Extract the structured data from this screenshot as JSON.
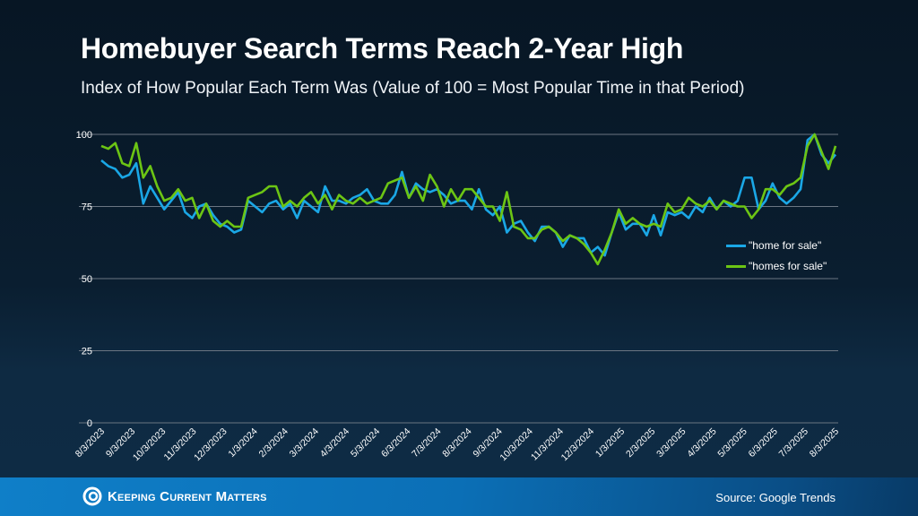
{
  "title": "Homebuyer Search Terms Reach 2-Year High",
  "subtitle": "Index of How Popular Each Term Was (Value of 100 = Most Popular Time in that Period)",
  "footer": {
    "brand": "Keeping Current Matters",
    "source": "Source: Google Trends",
    "logo_icon": "kcm-swirl-logo"
  },
  "colors": {
    "home for sale": "#1aa7e6",
    "homes for sale": "#6cc514",
    "grid": "#6b7682"
  },
  "chart_data": {
    "type": "line",
    "title": "Homebuyer Search Terms Reach 2-Year High",
    "subtitle": "Index of How Popular Each Term Was (Value of 100 = Most Popular Time in that Period)",
    "ylim": [
      0,
      100
    ],
    "yticks": [
      0,
      25,
      50,
      75,
      100
    ],
    "grid": true,
    "legend": "right",
    "xticks": [
      "8/3/2023",
      "9/3/2023",
      "10/3/2023",
      "11/3/2023",
      "12/3/2023",
      "1/3/2024",
      "2/3/2024",
      "3/3/2024",
      "4/3/2024",
      "5/3/2024",
      "6/3/2024",
      "7/3/2024",
      "8/3/2024",
      "9/3/2024",
      "10/3/2024",
      "11/3/2024",
      "12/3/2024",
      "1/3/2025",
      "2/3/2025",
      "3/3/2025",
      "4/3/2025",
      "5/3/2025",
      "6/3/2025",
      "7/3/2025",
      "8/3/2025"
    ],
    "series": [
      {
        "name": "\"home for sale\"",
        "values": [
          91,
          89,
          88,
          85,
          86,
          90,
          76,
          82,
          78,
          74,
          77,
          80,
          73,
          71,
          75,
          76,
          72,
          69,
          68,
          66,
          67,
          77,
          75,
          73,
          76,
          77,
          74,
          76,
          71,
          77,
          75,
          73,
          82,
          77,
          77,
          76,
          78,
          79,
          81,
          77,
          76,
          76,
          79,
          87,
          78,
          83,
          81,
          80,
          81,
          79,
          76,
          77,
          77,
          74,
          81,
          74,
          72,
          75,
          66,
          69,
          70,
          66,
          63,
          68,
          68,
          66,
          61,
          65,
          64,
          64,
          59,
          61,
          58,
          66,
          73,
          67,
          69,
          69,
          65,
          72,
          65,
          73,
          72,
          73,
          71,
          75,
          73,
          78,
          74,
          77,
          75,
          77,
          85,
          85,
          74,
          77,
          83,
          78,
          76,
          78,
          81,
          98,
          100,
          93,
          90,
          93
        ]
      },
      {
        "name": "\"homes for sale\"",
        "values": [
          96,
          95,
          97,
          90,
          89,
          97,
          85,
          89,
          82,
          77,
          78,
          81,
          77,
          78,
          71,
          76,
          70,
          68,
          70,
          68,
          68,
          78,
          79,
          80,
          82,
          82,
          75,
          77,
          75,
          78,
          80,
          76,
          79,
          74,
          79,
          77,
          76,
          78,
          76,
          77,
          78,
          83,
          84,
          85,
          78,
          82,
          77,
          86,
          82,
          75,
          81,
          77,
          81,
          81,
          78,
          75,
          75,
          70,
          80,
          68,
          67,
          64,
          64,
          67,
          68,
          66,
          63,
          65,
          64,
          62,
          59,
          55,
          60,
          66,
          74,
          69,
          71,
          69,
          68,
          69,
          68,
          76,
          73,
          74,
          78,
          76,
          75,
          77,
          74,
          77,
          76,
          75,
          75,
          71,
          74,
          81,
          81,
          79,
          82,
          83,
          85,
          96,
          100,
          94,
          88,
          96
        ]
      }
    ]
  }
}
